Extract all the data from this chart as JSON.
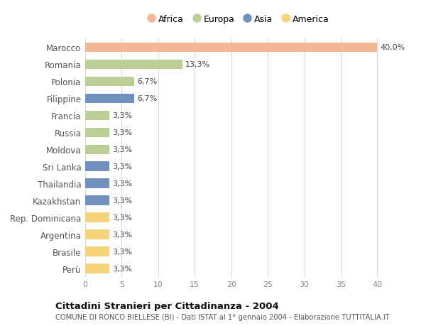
{
  "countries": [
    "Marocco",
    "Romania",
    "Polonia",
    "Filippine",
    "Francia",
    "Russia",
    "Moldova",
    "Sri Lanka",
    "Thailandia",
    "Kazakhstan",
    "Rep. Dominicana",
    "Argentina",
    "Brasile",
    "Perù"
  ],
  "values": [
    40.0,
    13.3,
    6.7,
    6.7,
    3.3,
    3.3,
    3.3,
    3.3,
    3.3,
    3.3,
    3.3,
    3.3,
    3.3,
    3.3
  ],
  "labels": [
    "40,0%",
    "13,3%",
    "6,7%",
    "6,7%",
    "3,3%",
    "3,3%",
    "3,3%",
    "3,3%",
    "3,3%",
    "3,3%",
    "3,3%",
    "3,3%",
    "3,3%",
    "3,3%"
  ],
  "continents": [
    "Africa",
    "Europa",
    "Europa",
    "Asia",
    "Europa",
    "Europa",
    "Europa",
    "Asia",
    "Asia",
    "Asia",
    "America",
    "America",
    "America",
    "America"
  ],
  "colors": {
    "Africa": "#F2B896",
    "Europa": "#BACF96",
    "Asia": "#7090BE",
    "America": "#F5D47A"
  },
  "xlim": [
    0,
    42
  ],
  "xticks": [
    0,
    5,
    10,
    15,
    20,
    25,
    30,
    35,
    40
  ],
  "title": "Cittadini Stranieri per Cittadinanza - 2004",
  "subtitle": "COMUNE DI RONCO BIELLESE (BI) - Dati ISTAT al 1° gennaio 2004 - Elaborazione TUTTITALIA.IT",
  "background_color": "#ffffff",
  "grid_color": "#d8d8d8",
  "bar_height": 0.55,
  "legend_order": [
    "Africa",
    "Europa",
    "Asia",
    "America"
  ],
  "label_fontsize": 8.0,
  "ytick_fontsize": 8.5,
  "xtick_fontsize": 8.0
}
